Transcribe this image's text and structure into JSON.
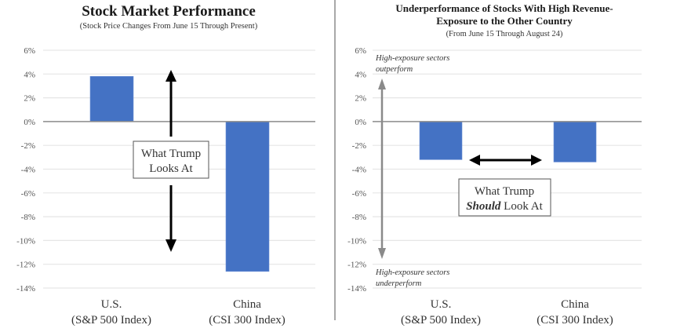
{
  "chart_data": [
    {
      "type": "bar",
      "title": "Stock Market Performance",
      "subtitle": "(Stock Price Changes From June 15 Through Present)",
      "xlabel": "",
      "ylabel": "",
      "ylim": [
        -14,
        6
      ],
      "yticks": [
        6,
        4,
        2,
        0,
        -2,
        -4,
        -6,
        -8,
        -10,
        -12,
        -14
      ],
      "ytick_labels": [
        "6%",
        "4%",
        "2%",
        "0%",
        "-2%",
        "-4%",
        "-6%",
        "-8%",
        "-10%",
        "-12%",
        "-14%"
      ],
      "grid": true,
      "categories": [
        {
          "line1": "U.S.",
          "line2": "(S&P 500 Index)"
        },
        {
          "line1": "China",
          "line2": "(CSI 300 Index)"
        }
      ],
      "values": [
        3.8,
        -12.6
      ],
      "bar_color": "#4472C4",
      "annotation": {
        "line1": "What Trump",
        "line2": "Looks At"
      }
    },
    {
      "type": "bar",
      "title": "Underperformance of Stocks With High Revenue-",
      "title_line2": "Exposure to the Other Country",
      "subtitle": "(From June 15 Through August 24)",
      "xlabel": "",
      "ylabel": "",
      "ylim": [
        -14,
        6
      ],
      "yticks": [
        6,
        4,
        2,
        0,
        -2,
        -4,
        -6,
        -8,
        -10,
        -12,
        -14
      ],
      "ytick_labels": [
        "6%",
        "4%",
        "2%",
        "0%",
        "-2%",
        "-4%",
        "-6%",
        "-8%",
        "-10%",
        "-12%",
        "-14%"
      ],
      "grid": true,
      "categories": [
        {
          "line1": "U.S.",
          "line2": "(S&P 500 Index)"
        },
        {
          "line1": "China",
          "line2": "(CSI 300 Index)"
        }
      ],
      "values": [
        -3.2,
        -3.4
      ],
      "bar_color": "#4472C4",
      "annotation": {
        "line1": "What Trump",
        "line2_bold": "Should",
        "line2_rest": " Look At"
      },
      "side_notes": {
        "top": {
          "line1": "High-exposure sectors",
          "line2": "outperform"
        },
        "bottom": {
          "line1": "High-exposure sectors",
          "line2": "underperform"
        }
      }
    }
  ]
}
